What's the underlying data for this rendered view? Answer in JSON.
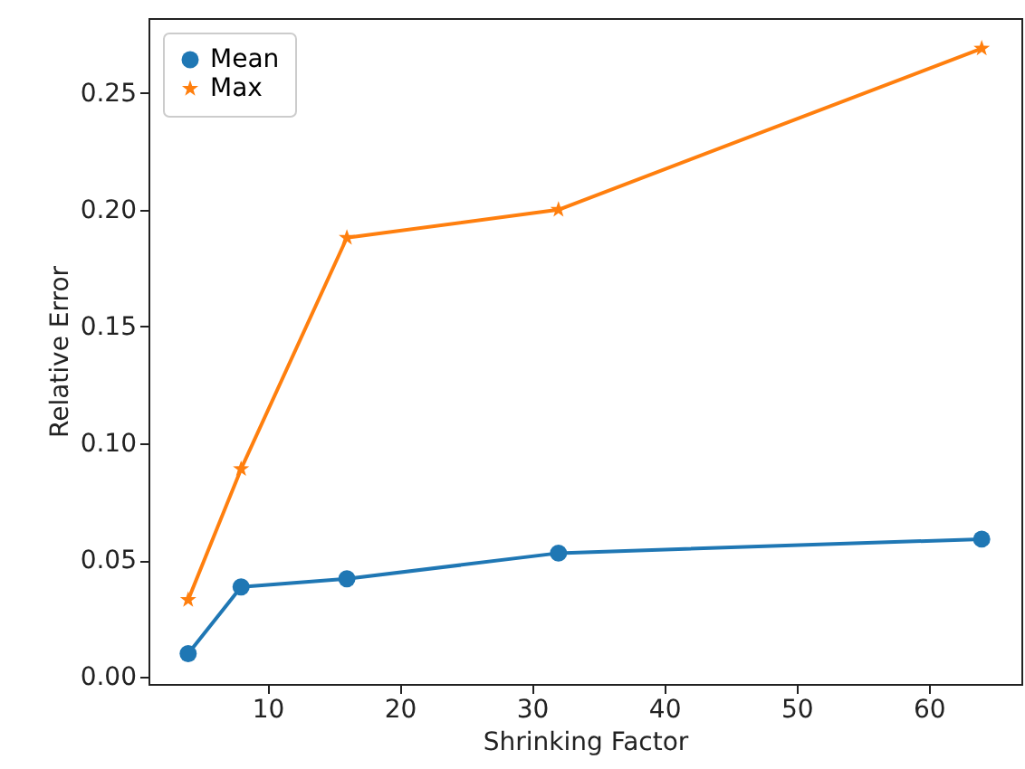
{
  "chart_data": {
    "type": "line",
    "xlabel": "Shrinking Factor",
    "ylabel": "Relative Error",
    "x": [
      4,
      8,
      16,
      32,
      64
    ],
    "series": [
      {
        "name": "Mean",
        "color": "#1f77b4",
        "marker": "circle",
        "values": [
          0.01,
          0.0385,
          0.042,
          0.053,
          0.059
        ]
      },
      {
        "name": "Max",
        "color": "#ff7f0e",
        "marker": "star",
        "values": [
          0.033,
          0.089,
          0.188,
          0.2,
          0.269
        ]
      }
    ],
    "xlim": [
      1,
      67
    ],
    "xticks": [
      10,
      20,
      30,
      40,
      50,
      60
    ],
    "ylim": [
      -0.003,
      0.282
    ],
    "yticks": [
      {
        "value": 0,
        "label": "0.00"
      },
      0.05,
      {
        "value": 0.1,
        "label": "0.10"
      },
      0.15,
      {
        "value": 0.2,
        "label": "0.20"
      },
      0.25
    ],
    "grid": false,
    "legend": "top left",
    "line_style": "solid"
  }
}
